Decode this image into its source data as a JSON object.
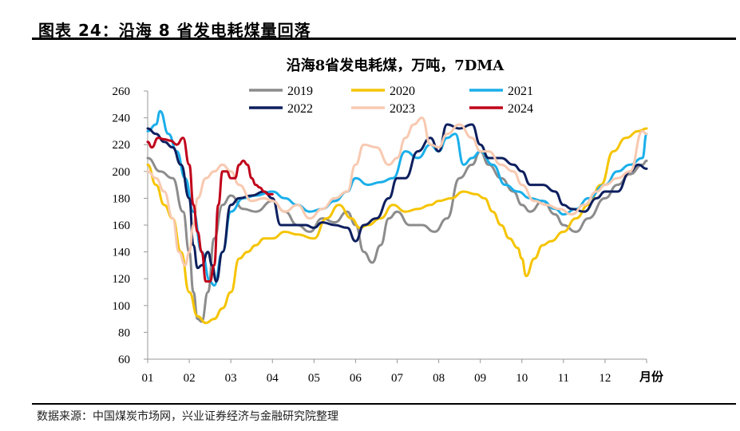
{
  "figure": {
    "title": "图表 24：沿海 8 省发电耗煤量回落",
    "source": "数据来源：中国煤炭市场网，兴业证券经济与金融研究院整理"
  },
  "chart_data": {
    "type": "line",
    "title": "沿海8省发电耗煤，万吨，7DMA",
    "xlabel": "月份",
    "ylabel": "",
    "ylim": [
      60,
      260
    ],
    "yticks": [
      60,
      80,
      100,
      120,
      140,
      160,
      180,
      200,
      220,
      240,
      260
    ],
    "xlim": [
      1,
      13
    ],
    "xticks": [
      "01",
      "02",
      "03",
      "04",
      "05",
      "06",
      "07",
      "08",
      "09",
      "10",
      "11",
      "12"
    ],
    "legend_position": "top",
    "series": [
      {
        "name": "2019",
        "color": "#8c8c8c",
        "x": [
          1.0,
          1.3,
          1.6,
          1.85,
          2.0,
          2.1,
          2.2,
          2.3,
          2.45,
          2.6,
          2.8,
          3.0,
          3.3,
          3.6,
          4.0,
          4.3,
          4.6,
          4.9,
          5.2,
          5.5,
          5.8,
          6.0,
          6.2,
          6.4,
          6.6,
          6.8,
          7.0,
          7.3,
          7.6,
          7.9,
          8.2,
          8.5,
          8.8,
          9.0,
          9.2,
          9.5,
          9.8,
          10.0,
          10.2,
          10.5,
          10.8,
          11.0,
          11.3,
          11.6,
          12.0,
          12.3,
          12.6,
          12.9,
          13.0
        ],
        "y": [
          210,
          200,
          195,
          170,
          140,
          110,
          90,
          88,
          110,
          150,
          175,
          182,
          172,
          170,
          178,
          170,
          160,
          155,
          165,
          162,
          170,
          160,
          140,
          132,
          145,
          165,
          170,
          160,
          160,
          155,
          165,
          195,
          205,
          215,
          205,
          195,
          185,
          175,
          170,
          178,
          168,
          160,
          155,
          165,
          180,
          190,
          198,
          205,
          208
        ]
      },
      {
        "name": "2020",
        "color": "#f5c400",
        "x": [
          1.0,
          1.2,
          1.4,
          1.6,
          1.8,
          2.0,
          2.2,
          2.4,
          2.6,
          2.8,
          3.0,
          3.2,
          3.4,
          3.6,
          3.8,
          4.0,
          4.3,
          4.6,
          5.0,
          5.3,
          5.6,
          5.9,
          6.1,
          6.3,
          6.6,
          6.9,
          7.2,
          7.5,
          7.8,
          8.0,
          8.3,
          8.6,
          8.9,
          9.1,
          9.3,
          9.5,
          9.7,
          9.9,
          10.0,
          10.1,
          10.3,
          10.5,
          10.7,
          11.0,
          11.3,
          11.6,
          11.9,
          12.2,
          12.5,
          12.8,
          13.0
        ],
        "y": [
          205,
          190,
          175,
          165,
          140,
          110,
          92,
          87,
          90,
          98,
          110,
          135,
          140,
          145,
          150,
          150,
          155,
          153,
          150,
          165,
          175,
          165,
          158,
          160,
          165,
          175,
          170,
          172,
          175,
          178,
          180,
          185,
          183,
          180,
          170,
          160,
          150,
          143,
          135,
          122,
          135,
          145,
          148,
          155,
          165,
          175,
          190,
          215,
          225,
          230,
          232
        ]
      },
      {
        "name": "2021",
        "color": "#1aafea",
        "x": [
          1.0,
          1.2,
          1.3,
          1.5,
          1.7,
          1.9,
          2.1,
          2.3,
          2.5,
          2.6,
          2.8,
          3.0,
          3.3,
          3.6,
          4.0,
          4.3,
          4.6,
          4.9,
          5.2,
          5.5,
          5.8,
          6.0,
          6.3,
          6.6,
          6.9,
          7.2,
          7.5,
          7.8,
          8.0,
          8.2,
          8.4,
          8.6,
          8.8,
          9.0,
          9.3,
          9.6,
          9.9,
          10.2,
          10.5,
          10.8,
          11.0,
          11.3,
          11.6,
          12.0,
          12.3,
          12.6,
          12.9,
          13.0
        ],
        "y": [
          230,
          235,
          245,
          228,
          215,
          195,
          170,
          140,
          118,
          115,
          140,
          170,
          180,
          182,
          185,
          180,
          175,
          170,
          172,
          178,
          185,
          195,
          190,
          192,
          195,
          215,
          210,
          220,
          215,
          225,
          228,
          205,
          210,
          215,
          205,
          190,
          185,
          180,
          178,
          172,
          168,
          172,
          180,
          190,
          200,
          205,
          210,
          228
        ]
      },
      {
        "name": "2022",
        "color": "#0d1f5e",
        "x": [
          1.0,
          1.2,
          1.4,
          1.6,
          1.8,
          2.0,
          2.1,
          2.2,
          2.3,
          2.45,
          2.55,
          2.65,
          2.8,
          3.0,
          3.2,
          3.5,
          3.8,
          4.0,
          4.2,
          4.5,
          4.8,
          5.0,
          5.2,
          5.5,
          5.8,
          6.0,
          6.2,
          6.5,
          6.8,
          7.0,
          7.2,
          7.5,
          7.8,
          8.0,
          8.2,
          8.5,
          8.8,
          9.0,
          9.2,
          9.5,
          9.8,
          10.0,
          10.2,
          10.5,
          10.8,
          11.0,
          11.2,
          11.5,
          11.8,
          12.0,
          12.3,
          12.6,
          12.8,
          13.0
        ],
        "y": [
          232,
          228,
          222,
          218,
          205,
          180,
          145,
          128,
          130,
          140,
          130,
          118,
          140,
          175,
          180,
          182,
          185,
          180,
          160,
          160,
          160,
          158,
          162,
          160,
          158,
          148,
          160,
          165,
          180,
          195,
          195,
          215,
          225,
          215,
          235,
          232,
          235,
          220,
          210,
          210,
          205,
          200,
          190,
          190,
          185,
          175,
          172,
          170,
          180,
          185,
          185,
          200,
          205,
          202
        ]
      },
      {
        "name": "2023",
        "color": "#f8c9b0",
        "x": [
          1.0,
          1.2,
          1.4,
          1.6,
          1.75,
          1.9,
          2.0,
          2.1,
          2.2,
          2.4,
          2.6,
          2.8,
          3.0,
          3.2,
          3.5,
          3.8,
          4.0,
          4.3,
          4.6,
          4.9,
          5.2,
          5.5,
          5.8,
          6.0,
          6.2,
          6.5,
          6.8,
          7.0,
          7.2,
          7.4,
          7.6,
          7.8,
          8.0,
          8.2,
          8.5,
          8.8,
          9.0,
          9.2,
          9.5,
          9.8,
          10.0,
          10.3,
          10.6,
          10.9,
          11.2,
          11.5,
          11.8,
          12.0,
          12.3,
          12.6,
          12.9,
          13.0
        ],
        "y": [
          200,
          195,
          185,
          165,
          140,
          130,
          140,
          160,
          180,
          195,
          200,
          205,
          200,
          190,
          178,
          180,
          178,
          170,
          175,
          165,
          172,
          180,
          185,
          205,
          220,
          218,
          205,
          210,
          225,
          235,
          240,
          220,
          218,
          228,
          235,
          225,
          215,
          215,
          205,
          200,
          190,
          178,
          175,
          172,
          168,
          175,
          185,
          190,
          195,
          200,
          230,
          228
        ]
      },
      {
        "name": "2024",
        "color": "#c0001a",
        "x": [
          1.0,
          1.1,
          1.25,
          1.4,
          1.55,
          1.7,
          1.85,
          2.0,
          2.1,
          2.2,
          2.3,
          2.4,
          2.5,
          2.6,
          2.7,
          2.8,
          2.9,
          3.0,
          3.1,
          3.2,
          3.3,
          3.4,
          3.5,
          3.6,
          3.7,
          3.8,
          3.9,
          4.0
        ],
        "y": [
          222,
          218,
          225,
          224,
          223,
          220,
          225,
          205,
          175,
          155,
          140,
          118,
          118,
          130,
          175,
          200,
          200,
          195,
          195,
          205,
          208,
          205,
          195,
          190,
          188,
          185,
          183,
          183
        ]
      }
    ]
  }
}
